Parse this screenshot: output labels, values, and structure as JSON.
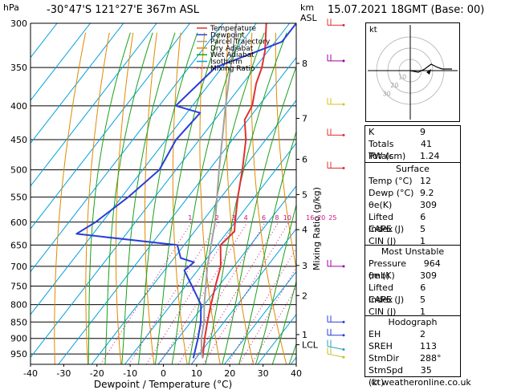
{
  "header": {
    "hpa": "hPa",
    "location": "-30°47'S  121°27'E  367m  ASL",
    "km": "km",
    "asl": "ASL",
    "datetime": "15.07.2021  18GMT  (Base: 00)"
  },
  "legend": [
    "Temperature",
    "Dewpoint",
    "Parcel Trajectory",
    "Dry Adiabat",
    "Wet Adiabat",
    "Isotherm",
    "Mixing Ratio"
  ],
  "colors": {
    "temperature": "#e03030",
    "dewpoint": "#2a3fd8",
    "parcel": "#a0a0a0",
    "dry_adiabat": "#e08a00",
    "wet_adiabat": "#1aa01a",
    "isotherm": "#00a0e0",
    "mixing_ratio": "#d01080"
  },
  "chart_data": {
    "type": "line",
    "title": "",
    "xlabel": "Dewpoint / Temperature (°C)",
    "ylabel": "hPa",
    "xlim": [
      -40,
      40
    ],
    "x_ticks": [
      "-40",
      "-30",
      "-20",
      "-10",
      "0",
      "10",
      "20",
      "30",
      "40"
    ],
    "pressure_levels": [
      "300",
      "350",
      "400",
      "450",
      "500",
      "550",
      "600",
      "650",
      "700",
      "750",
      "800",
      "850",
      "900",
      "950"
    ],
    "km_labels": [
      "8",
      "7",
      "6",
      "5",
      "4",
      "3",
      "2",
      "1",
      "LCL"
    ],
    "mixing_ratio_label": "Mixing Ratio (g/kg)",
    "mixing_ratio_values": [
      "1",
      "2",
      "3",
      "4",
      "6",
      "8",
      "10",
      "16",
      "20",
      "25"
    ],
    "series": [
      {
        "name": "Temperature",
        "points": [
          [
            964,
            12
          ],
          [
            900,
            8
          ],
          [
            850,
            5
          ],
          [
            800,
            2
          ],
          [
            750,
            -1
          ],
          [
            700,
            -4
          ],
          [
            650,
            -9
          ],
          [
            620,
            -8
          ],
          [
            600,
            -10
          ],
          [
            550,
            -15
          ],
          [
            500,
            -20
          ],
          [
            450,
            -26
          ],
          [
            420,
            -31
          ],
          [
            400,
            -32
          ],
          [
            370,
            -36
          ],
          [
            350,
            -38
          ],
          [
            330,
            -41
          ],
          [
            300,
            -47
          ]
        ]
      },
      {
        "name": "Dewpoint",
        "points": [
          [
            964,
            9.2
          ],
          [
            900,
            6
          ],
          [
            850,
            3
          ],
          [
            800,
            -1
          ],
          [
            750,
            -8
          ],
          [
            710,
            -14
          ],
          [
            690,
            -13
          ],
          [
            680,
            -18
          ],
          [
            650,
            -22
          ],
          [
            625,
            -55
          ],
          [
            600,
            -52
          ],
          [
            550,
            -48
          ],
          [
            500,
            -45
          ],
          [
            450,
            -47
          ],
          [
            410,
            -46
          ],
          [
            400,
            -55
          ],
          [
            350,
            -52
          ],
          [
            320,
            -38
          ],
          [
            300,
            -38
          ]
        ]
      },
      {
        "name": "Parcel Trajectory",
        "points": [
          [
            964,
            12
          ],
          [
            940,
            10
          ],
          [
            900,
            7
          ],
          [
            850,
            4
          ],
          [
            800,
            0
          ],
          [
            700,
            -8
          ],
          [
            600,
            -16
          ],
          [
            500,
            -27
          ],
          [
            400,
            -40
          ],
          [
            300,
            -56
          ]
        ]
      }
    ],
    "hodograph_label": "kt",
    "hodograph_rings": [
      "10",
      "20",
      "30"
    ]
  },
  "indices": {
    "k_label": "K",
    "k": "9",
    "tt_label": "Totals Totals",
    "tt": "41",
    "pw_label": "PW (cm)",
    "pw": "1.24"
  },
  "surface": {
    "title": "Surface",
    "temp_label": "Temp (°C)",
    "temp": "12",
    "dewp_label": "Dewp (°C)",
    "dewp": "9.2",
    "thetae_label": "θe(K)",
    "thetae": "309",
    "li_label": "Lifted Index",
    "li": "6",
    "cape_label": "CAPE (J)",
    "cape": "5",
    "cin_label": "CIN (J)",
    "cin": "1"
  },
  "most_unstable": {
    "title": "Most Unstable",
    "pressure_label": "Pressure (mb)",
    "pressure": "964",
    "thetae_label": "θe (K)",
    "thetae": "309",
    "li_label": "Lifted Index",
    "li": "6",
    "cape_label": "CAPE (J)",
    "cape": "5",
    "cin_label": "CIN (J)",
    "cin": "1"
  },
  "hodograph_table": {
    "title": "Hodograph",
    "eh_label": "EH",
    "eh": "2",
    "sreh_label": "SREH",
    "sreh": "113",
    "stmdir_label": "StmDir",
    "stmdir": "288°",
    "stmspd_label": "StmSpd (kt)",
    "stmspd": "35"
  },
  "footer": {
    "copyright": "© weatheronline.co.uk"
  }
}
